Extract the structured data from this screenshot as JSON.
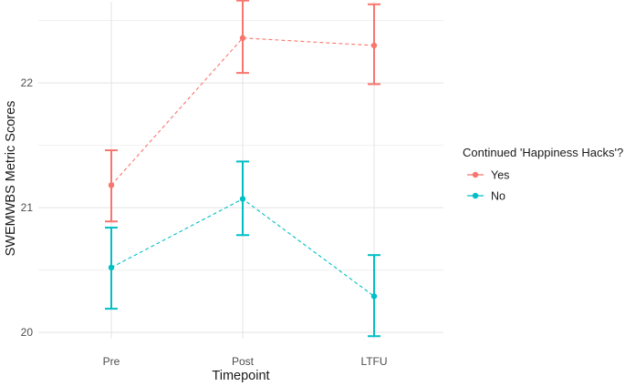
{
  "chart_data": {
    "type": "line",
    "title": "",
    "xlabel": "Timepoint",
    "ylabel": "SWEMWBS Metric Scores",
    "categories": [
      "Pre",
      "Post",
      "LTFU"
    ],
    "ylim": [
      19.95,
      22.65
    ],
    "yticks": [
      20,
      21,
      22
    ],
    "ytick_labels": [
      "20",
      "21",
      "22"
    ],
    "grid": true,
    "legend": {
      "title": "Continued 'Happiness Hacks'?",
      "position": "right"
    },
    "series": [
      {
        "name": "Yes",
        "color": "#f8766d",
        "values": [
          21.18,
          22.36,
          22.3
        ],
        "error_low": [
          20.89,
          22.08,
          21.99
        ],
        "error_high": [
          21.46,
          22.66,
          22.63
        ]
      },
      {
        "name": "No",
        "color": "#00bfc4",
        "values": [
          20.52,
          21.07,
          20.29
        ],
        "error_low": [
          20.19,
          20.78,
          19.97
        ],
        "error_high": [
          20.84,
          21.37,
          20.62
        ]
      }
    ]
  }
}
